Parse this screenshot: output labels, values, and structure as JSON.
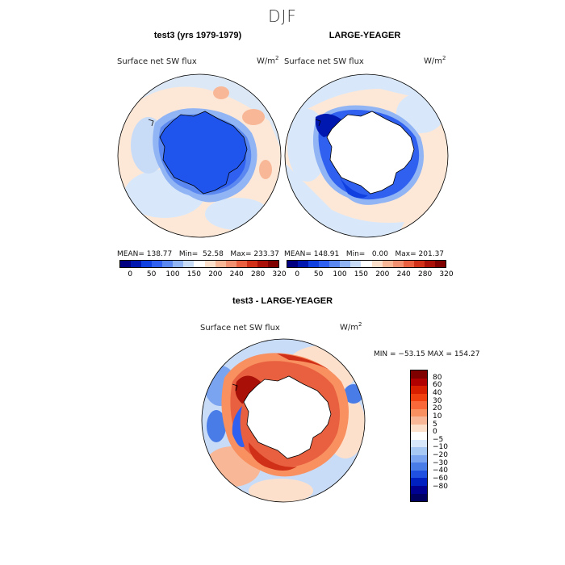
{
  "figure": {
    "title": "DJF"
  },
  "panels": {
    "top_left": {
      "title": "test3 (yrs 1979-1979)",
      "variable": "Surface net SW flux",
      "units_base": "W/m",
      "units_exp": "2",
      "stats": "MEAN= 138.77   Min=  52.58   Max= 233.37"
    },
    "top_right": {
      "title": "LARGE-YEAGER",
      "variable": "Surface net SW flux",
      "units_base": "W/m",
      "units_exp": "2",
      "stats": "MEAN= 148.91   Min=   0.00   Max= 201.37"
    },
    "bottom": {
      "title": "test3 - LARGE-YEAGER",
      "variable": "Surface net SW flux",
      "units_base": "W/m",
      "units_exp": "2",
      "stats": "MIN = −53.15 MAX = 154.27"
    }
  },
  "colors": {
    "abs_scale": [
      "#000080",
      "#0018b0",
      "#1040e0",
      "#3060f0",
      "#5a88f0",
      "#90b4f4",
      "#c8dcf8",
      "#ffffff",
      "#fde0cc",
      "#f8b898",
      "#f09070",
      "#e86040",
      "#d03018",
      "#a81008",
      "#800000"
    ],
    "diff_scale": [
      "#800000",
      "#b00000",
      "#d82000",
      "#f04010",
      "#f86838",
      "#f89060",
      "#f8b898",
      "#fde0cc",
      "#ffffff",
      "#d8e8fa",
      "#a8c8f4",
      "#7aa4f0",
      "#4a7ce8",
      "#2050e0",
      "#0020c0",
      "#000090",
      "#000060"
    ]
  },
  "chart_data": [
    {
      "type": "heatmap",
      "title": "test3 (yrs 1979-1979)",
      "colorbar": {
        "tick_labels": [
          "0",
          "50",
          "100",
          "150",
          "200",
          "240",
          "280",
          "320"
        ],
        "tick_values": [
          0,
          50,
          100,
          150,
          200,
          240,
          280,
          320
        ]
      },
      "stats": {
        "mean": 138.77,
        "min": 52.58,
        "max": 233.37
      }
    },
    {
      "type": "heatmap",
      "title": "LARGE-YEAGER",
      "colorbar": {
        "tick_labels": [
          "0",
          "50",
          "100",
          "150",
          "200",
          "240",
          "280",
          "320"
        ],
        "tick_values": [
          0,
          50,
          100,
          150,
          200,
          240,
          280,
          320
        ]
      },
      "stats": {
        "mean": 148.91,
        "min": 0.0,
        "max": 201.37
      }
    },
    {
      "type": "heatmap",
      "title": "test3 - LARGE-YEAGER",
      "colorbar": {
        "tick_labels": [
          "80",
          "60",
          "40",
          "30",
          "20",
          "10",
          "5",
          "0",
          "−5",
          "−10",
          "−20",
          "−30",
          "−40",
          "−60",
          "−80"
        ],
        "tick_values": [
          80,
          60,
          40,
          30,
          20,
          10,
          5,
          0,
          -5,
          -10,
          -20,
          -30,
          -40,
          -60,
          -80
        ]
      },
      "stats": {
        "min": -53.15,
        "max": 154.27
      }
    }
  ]
}
